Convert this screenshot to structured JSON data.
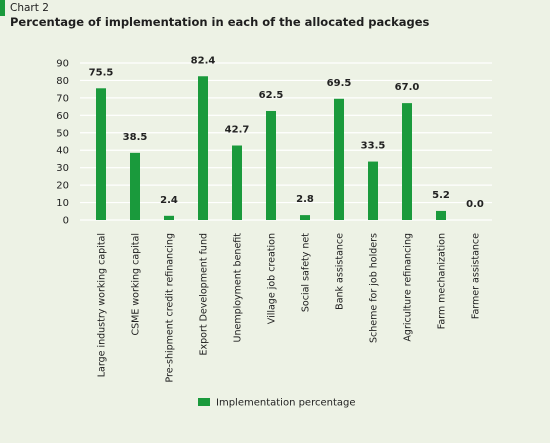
{
  "header": {
    "label": "Chart 2",
    "title": "Percentage of implementation in each of the allocated packages"
  },
  "colors": {
    "bar": "#1a9a3c",
    "grid": "#ffffff",
    "background": "#edf2e5"
  },
  "chart_data": {
    "type": "bar",
    "title": "Percentage of implementation in each of the allocated packages",
    "xlabel": "",
    "ylabel": "",
    "ylim": [
      0,
      90
    ],
    "yticks": [
      0,
      10,
      20,
      30,
      40,
      50,
      60,
      70,
      80,
      90
    ],
    "grid": true,
    "legend_position": "bottom",
    "categories": [
      "Large industry working capital",
      "CSME working capital",
      "Pre-shipment credit refinancing",
      "Export Development fund",
      "Unemployment benefit",
      "Village job creation",
      "Social safety net",
      "Bank assistance",
      "Scheme for job holders",
      "Agriculture refinancing",
      "Farm mechanization",
      "Farmer assistance"
    ],
    "series": [
      {
        "name": "Implementation percentage",
        "values": [
          75.5,
          38.5,
          2.4,
          82.4,
          42.7,
          62.5,
          2.8,
          69.5,
          33.5,
          67.0,
          5.2,
          0.0
        ],
        "labels": [
          "75.5",
          "38.5",
          "2.4",
          "82.4",
          "42.7",
          "62.5",
          "2.8",
          "69.5",
          "33.5",
          "67.0",
          "5.2",
          "0.0"
        ]
      }
    ]
  }
}
